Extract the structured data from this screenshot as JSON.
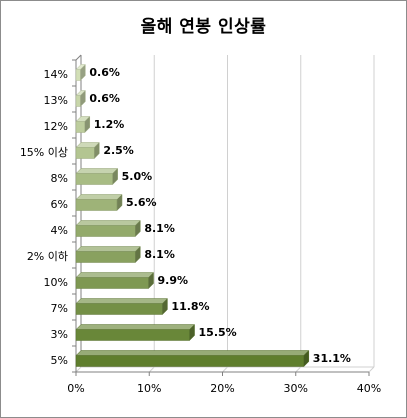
{
  "chart_data": {
    "type": "bar",
    "orientation": "horizontal",
    "title": "올해 연봉 인상률",
    "categories": [
      "14%",
      "13%",
      "12%",
      "15% 이상",
      "8%",
      "6%",
      "4%",
      "2% 이하",
      "10%",
      "7%",
      "3%",
      "5%"
    ],
    "values": [
      0.6,
      0.6,
      1.2,
      2.5,
      5.0,
      5.6,
      8.1,
      8.1,
      9.9,
      11.8,
      15.5,
      31.1
    ],
    "value_labels": [
      "0.6%",
      "0.6%",
      "1.2%",
      "2.5%",
      "5.0%",
      "5.6%",
      "8.1%",
      "8.1%",
      "9.9%",
      "11.8%",
      "15.5%",
      "31.1%"
    ],
    "xlim": [
      0,
      40
    ],
    "xticks": [
      "0%",
      "10%",
      "20%",
      "30%",
      "40%"
    ],
    "xlabel": "",
    "ylabel": "",
    "grid": "vertical",
    "legend": "none",
    "bar_style": "3d",
    "colors": {
      "bar_light": "#d2dfb6",
      "bar_dark": "#5f7e2d",
      "bar_side_shadow": "#4a6322",
      "gridline": "#d0d0d0",
      "axis": "#808080"
    }
  }
}
